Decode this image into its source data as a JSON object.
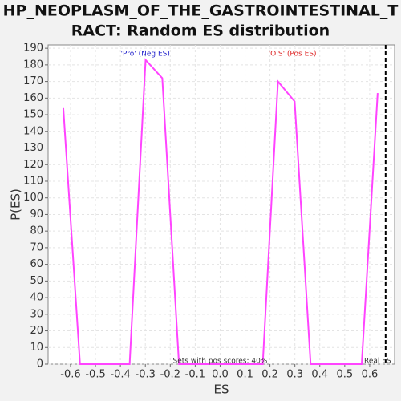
{
  "chart_data": {
    "type": "line",
    "title_lines": [
      "HP_NEOPLASM_OF_THE_GASTROINTESTINAL_T",
      "RACT: Random ES distribution"
    ],
    "xlabel": "ES",
    "ylabel": "P(ES)",
    "x": [
      -0.629,
      -0.562,
      -0.363,
      -0.299,
      -0.232,
      -0.165,
      0.171,
      0.232,
      0.299,
      0.363,
      0.568,
      0.632
    ],
    "series": [
      {
        "color": "#ff44ff",
        "values": [
          154,
          0,
          0,
          183,
          172,
          0,
          0,
          170,
          158,
          0,
          0,
          163
        ]
      }
    ],
    "xlim": [
      -0.69,
      0.7
    ],
    "ylim": [
      0,
      192
    ],
    "xticks": [
      -0.6,
      -0.5,
      -0.4,
      -0.3,
      -0.2,
      -0.1,
      {
        "value": 0,
        "label": "0.0"
      },
      0.1,
      0.2,
      0.3,
      0.4,
      0.5,
      0.6
    ],
    "yticks": [
      0,
      10,
      20,
      30,
      40,
      50,
      60,
      70,
      80,
      90,
      100,
      110,
      120,
      130,
      140,
      150,
      160,
      170,
      180,
      190
    ],
    "grid": true,
    "real_es": {
      "x": 0.664,
      "label": "Real ES"
    },
    "annotations": [
      {
        "text": "'Pro' (Neg ES)",
        "x": -0.3,
        "color": "#2222cc"
      },
      {
        "text": "'OIS' (Pos ES)",
        "x": 0.29,
        "color": "#dd2222"
      },
      {
        "text": "Sets with pos scores: 40%",
        "x": 0.0,
        "color": "#333333"
      }
    ]
  }
}
